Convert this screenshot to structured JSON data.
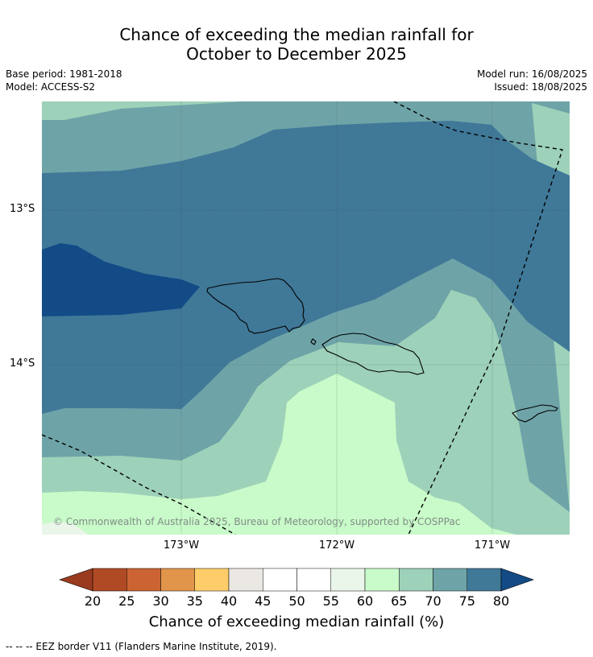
{
  "title_line1": "Chance of exceeding the median rainfall for",
  "title_line2": "October to December 2025",
  "base_period": "Base period: 1981-2018",
  "model": "Model: ACCESS-S2",
  "model_run": "Model run: 16/08/2025",
  "issued": "Issued: 18/08/2025",
  "lat_labels": [
    "13°S",
    "14°S"
  ],
  "lon_labels": [
    "173°W",
    "172°W",
    "171°W"
  ],
  "copyright": "© Commonwealth of Australia 2025, Bureau of Meteorology, supported by COSPPac",
  "colorbar": {
    "ticks": [
      "20",
      "25",
      "30",
      "35",
      "40",
      "45",
      "50",
      "55",
      "60",
      "65",
      "70",
      "75",
      "80"
    ],
    "colors": [
      "#b04a25",
      "#cb6432",
      "#e0954a",
      "#fdcd6a",
      "#ebe8e4",
      "#ffffff",
      "#ffffff",
      "#e9f6e9",
      "#c9fac9",
      "#9dd1b9",
      "#6ea4a8",
      "#407898"
    ],
    "under_color": "#9a3a1e",
    "over_color": "#124b86",
    "label": "Chance of exceeding median rainfall (%)"
  },
  "footnote": "--  --  -- EEZ border V11 (Flanders Marine Institute, 2019)."
}
